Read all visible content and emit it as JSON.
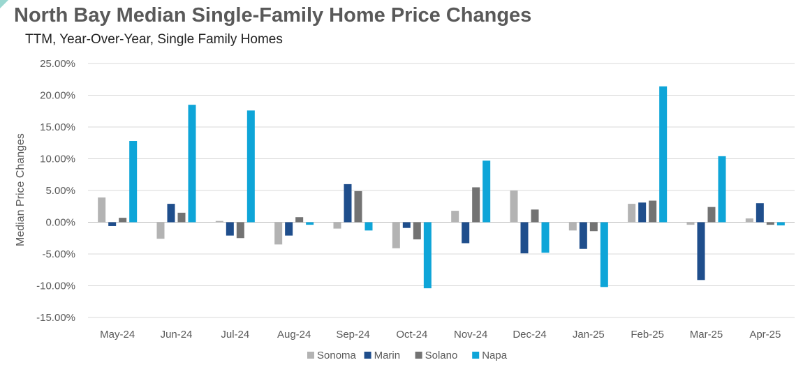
{
  "title": "North Bay Median Single-Family Home Price Changes",
  "subtitle": "TTM, Year-Over-Year, Single Family Homes",
  "chart_data": {
    "type": "bar",
    "ylabel": "Median Price Changes",
    "ylim": [
      -15,
      25
    ],
    "yticks": [
      25,
      20,
      15,
      10,
      5,
      0,
      -5,
      -10,
      -15
    ],
    "ytick_labels": [
      "25.00%",
      "20.00%",
      "15.00%",
      "10.00%",
      "5.00%",
      "0.00%",
      "-5.00%",
      "-10.00%",
      "-15.00%"
    ],
    "grid": true,
    "legend_position": "bottom",
    "categories": [
      "May-24",
      "Jun-24",
      "Jul-24",
      "Aug-24",
      "Sep-24",
      "Oct-24",
      "Nov-24",
      "Dec-24",
      "Jan-25",
      "Feb-25",
      "Mar-25",
      "Apr-25"
    ],
    "series": [
      {
        "name": "Sonoma",
        "color": "#b3b3b3",
        "values": [
          3.9,
          -2.6,
          0.2,
          -3.5,
          -1.0,
          -4.1,
          1.8,
          5.0,
          -1.3,
          2.9,
          -0.4,
          0.6
        ]
      },
      {
        "name": "Marin",
        "color": "#1f4e8c",
        "values": [
          -0.6,
          2.9,
          -2.1,
          -2.1,
          6.0,
          -0.9,
          -3.3,
          -4.9,
          -4.2,
          3.1,
          -9.1,
          3.0
        ]
      },
      {
        "name": "Solano",
        "color": "#737373",
        "values": [
          0.7,
          1.5,
          -2.5,
          0.8,
          4.9,
          -2.7,
          5.5,
          2.0,
          -1.4,
          3.4,
          2.4,
          -0.4
        ]
      },
      {
        "name": "Napa",
        "color": "#0ea5d8",
        "values": [
          12.8,
          18.5,
          17.6,
          -0.4,
          -1.3,
          -10.4,
          9.7,
          -4.8,
          -10.2,
          21.4,
          10.4,
          -0.5
        ]
      }
    ]
  }
}
